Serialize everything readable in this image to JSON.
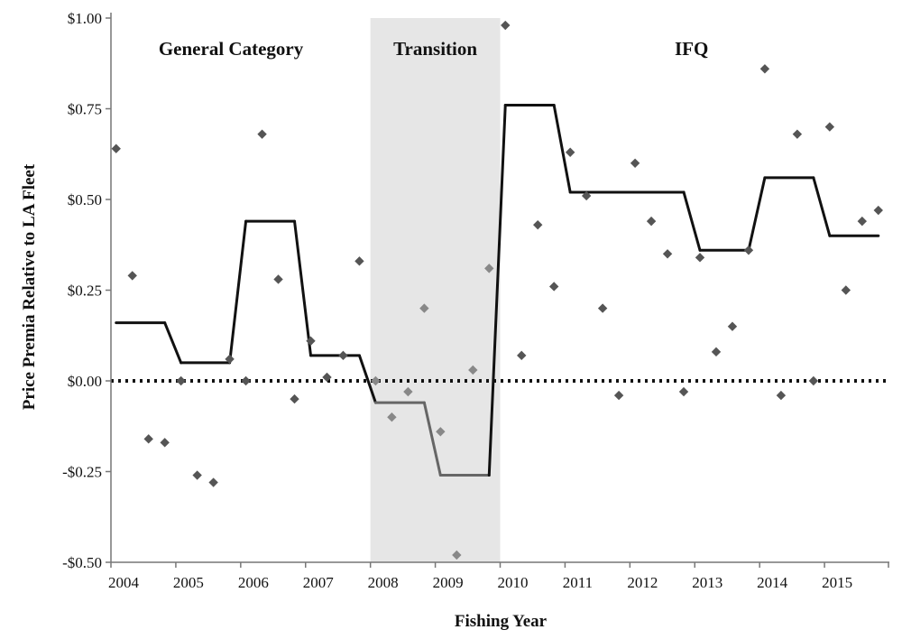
{
  "chart_data": {
    "type": "scatter",
    "title": "",
    "xlabel": "Fishing Year",
    "ylabel": "Price Premia Relative to LA Fleet",
    "xlim": [
      2004,
      2016
    ],
    "ylim": [
      -0.5,
      1.0
    ],
    "x_ticks": [
      2004,
      2005,
      2006,
      2007,
      2008,
      2009,
      2010,
      2011,
      2012,
      2013,
      2014,
      2015
    ],
    "x_tick_labels": [
      "2004",
      "2005",
      "2006",
      "2007",
      "2008",
      "2009",
      "2010",
      "2011",
      "2012",
      "2013",
      "2014",
      "2015"
    ],
    "y_ticks": [
      -0.5,
      -0.25,
      0,
      0.25,
      0.5,
      0.75,
      1.0
    ],
    "y_tick_labels": [
      "-$0.50",
      "-$0.25",
      "$0.00",
      "$0.25",
      "$0.50",
      "$0.75",
      "$1.00"
    ],
    "grid": false,
    "zero_reference_line": {
      "y": 0,
      "style": "dotted",
      "color": "#111111"
    },
    "regions": [
      {
        "label": "General Category",
        "x_start": 2004,
        "x_end": 2008,
        "shaded": false
      },
      {
        "label": "Transition",
        "x_start": 2008,
        "x_end": 2010,
        "shaded": true,
        "fill": "#e6e6e6"
      },
      {
        "label": "IFQ",
        "x_start": 2010,
        "x_end": 2016,
        "shaded": false
      }
    ],
    "colors": {
      "markers": "#555555",
      "transition_markers": "#888888",
      "step_line": "#111111",
      "transition_line": "#666666"
    },
    "series": [
      {
        "type": "scatter",
        "marker": "diamond",
        "points": [
          [
            2004.08,
            0.64
          ],
          [
            2004.33,
            0.29
          ],
          [
            2004.58,
            -0.16
          ],
          [
            2004.83,
            -0.17
          ],
          [
            2005.08,
            0.0
          ],
          [
            2005.33,
            -0.26
          ],
          [
            2005.58,
            -0.28
          ],
          [
            2005.83,
            0.06
          ],
          [
            2006.08,
            0.0
          ],
          [
            2006.33,
            0.68
          ],
          [
            2006.58,
            0.28
          ],
          [
            2006.83,
            -0.05
          ],
          [
            2007.08,
            0.11
          ],
          [
            2007.33,
            0.01
          ],
          [
            2007.58,
            0.07
          ],
          [
            2007.83,
            0.33
          ],
          [
            2008.08,
            0.0
          ],
          [
            2008.33,
            -0.1
          ],
          [
            2008.58,
            -0.03
          ],
          [
            2008.83,
            0.2
          ],
          [
            2009.08,
            -0.14
          ],
          [
            2009.33,
            -0.48
          ],
          [
            2009.58,
            0.03
          ],
          [
            2009.83,
            0.31
          ],
          [
            2010.08,
            0.98
          ],
          [
            2010.33,
            0.07
          ],
          [
            2010.58,
            0.43
          ],
          [
            2010.83,
            0.26
          ],
          [
            2011.08,
            0.63
          ],
          [
            2011.33,
            0.51
          ],
          [
            2011.58,
            0.2
          ],
          [
            2011.83,
            -0.04
          ],
          [
            2012.08,
            0.6
          ],
          [
            2012.33,
            0.44
          ],
          [
            2012.58,
            0.35
          ],
          [
            2012.83,
            -0.03
          ],
          [
            2013.08,
            0.34
          ],
          [
            2013.33,
            0.08
          ],
          [
            2013.58,
            0.15
          ],
          [
            2013.83,
            0.36
          ],
          [
            2014.08,
            0.86
          ],
          [
            2014.33,
            -0.04
          ],
          [
            2014.58,
            0.68
          ],
          [
            2014.83,
            0.0
          ],
          [
            2015.08,
            0.7
          ],
          [
            2015.33,
            0.25
          ],
          [
            2015.58,
            0.44
          ],
          [
            2015.83,
            0.47
          ]
        ]
      },
      {
        "type": "line",
        "style": "step",
        "points": [
          [
            2004.08,
            0.16
          ],
          [
            2004.83,
            0.16
          ],
          [
            2005.08,
            0.05
          ],
          [
            2005.83,
            0.05
          ],
          [
            2006.08,
            0.44
          ],
          [
            2006.83,
            0.44
          ],
          [
            2007.08,
            0.07
          ],
          [
            2007.83,
            0.07
          ],
          [
            2008.08,
            -0.06
          ],
          [
            2008.83,
            -0.06
          ],
          [
            2009.08,
            -0.26
          ],
          [
            2009.83,
            -0.26
          ],
          [
            2010.08,
            0.76
          ],
          [
            2010.83,
            0.76
          ],
          [
            2011.08,
            0.52
          ],
          [
            2011.83,
            0.52
          ],
          [
            2012.08,
            0.52
          ],
          [
            2012.83,
            0.52
          ],
          [
            2013.08,
            0.36
          ],
          [
            2013.83,
            0.36
          ],
          [
            2014.08,
            0.56
          ],
          [
            2014.83,
            0.56
          ],
          [
            2015.08,
            0.4
          ],
          [
            2015.83,
            0.4
          ]
        ]
      }
    ]
  }
}
